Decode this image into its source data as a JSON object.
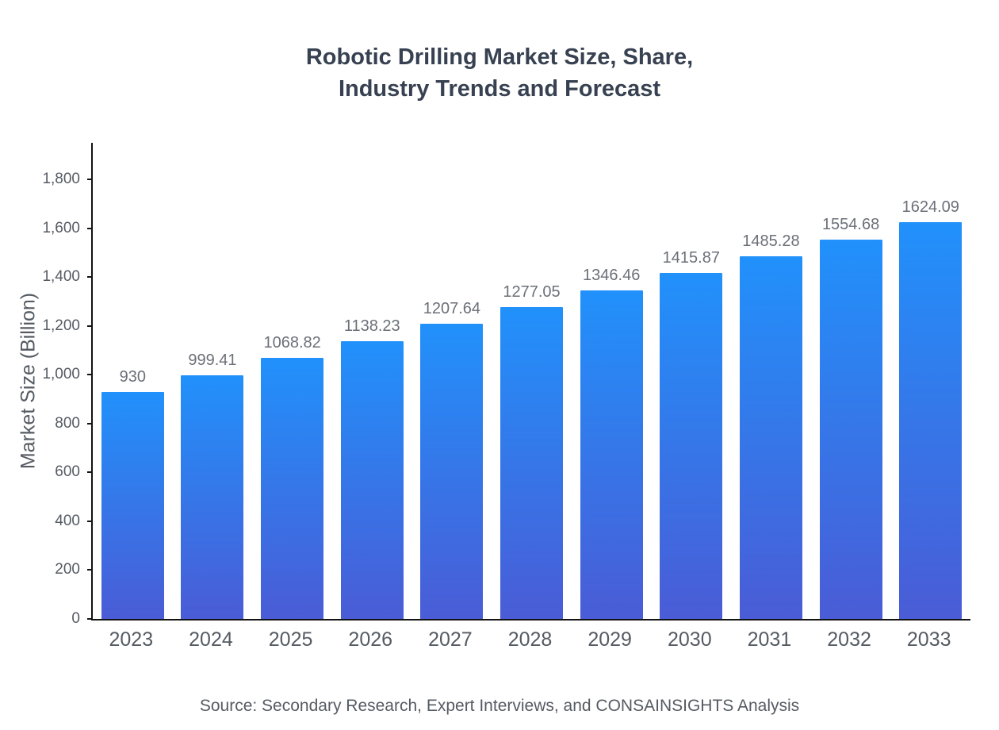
{
  "title": {
    "line1": "Robotic Drilling Market Size, Share,",
    "line2": "Industry Trends and Forecast"
  },
  "source": "Source: Secondary Research, Expert Interviews, and CONSAINSIGHTS Analysis",
  "colors": {
    "bar_gradient_top": "#2191fb",
    "bar_gradient_bottom": "#4a5cd6",
    "axis_line": "#131313",
    "label_gray": "#555b63",
    "value_label_gray": "#6b7078",
    "title_color": "#374151"
  },
  "chart_data": {
    "type": "bar",
    "title": "Robotic Drilling Market Size, Share, Industry Trends and Forecast",
    "categories": [
      "2023",
      "2024",
      "2025",
      "2026",
      "2027",
      "2028",
      "2029",
      "2030",
      "2031",
      "2032",
      "2033"
    ],
    "values": [
      930,
      999.41,
      1068.82,
      1138.23,
      1207.64,
      1277.05,
      1346.46,
      1415.87,
      1485.28,
      1554.68,
      1624.09
    ],
    "value_labels": [
      "930",
      "999.41",
      "1068.82",
      "1138.23",
      "1207.64",
      "1277.05",
      "1346.46",
      "1415.87",
      "1485.28",
      "1554.68",
      "1624.09"
    ],
    "xlabel": "",
    "ylabel": "Market Size (Billion)",
    "ylim": [
      0,
      1950
    ],
    "yticks": [
      {
        "value": 0,
        "label": "0"
      },
      {
        "value": 200,
        "label": "200"
      },
      {
        "value": 400,
        "label": "400"
      },
      {
        "value": 600,
        "label": "600"
      },
      {
        "value": 800,
        "label": "800"
      },
      {
        "value": 1000,
        "label": "1,000"
      },
      {
        "value": 1200,
        "label": "1,200"
      },
      {
        "value": 1400,
        "label": "1,400"
      },
      {
        "value": 1600,
        "label": "1,600"
      },
      {
        "value": 1800,
        "label": "1,800"
      }
    ],
    "grid": false,
    "legend": "none"
  }
}
